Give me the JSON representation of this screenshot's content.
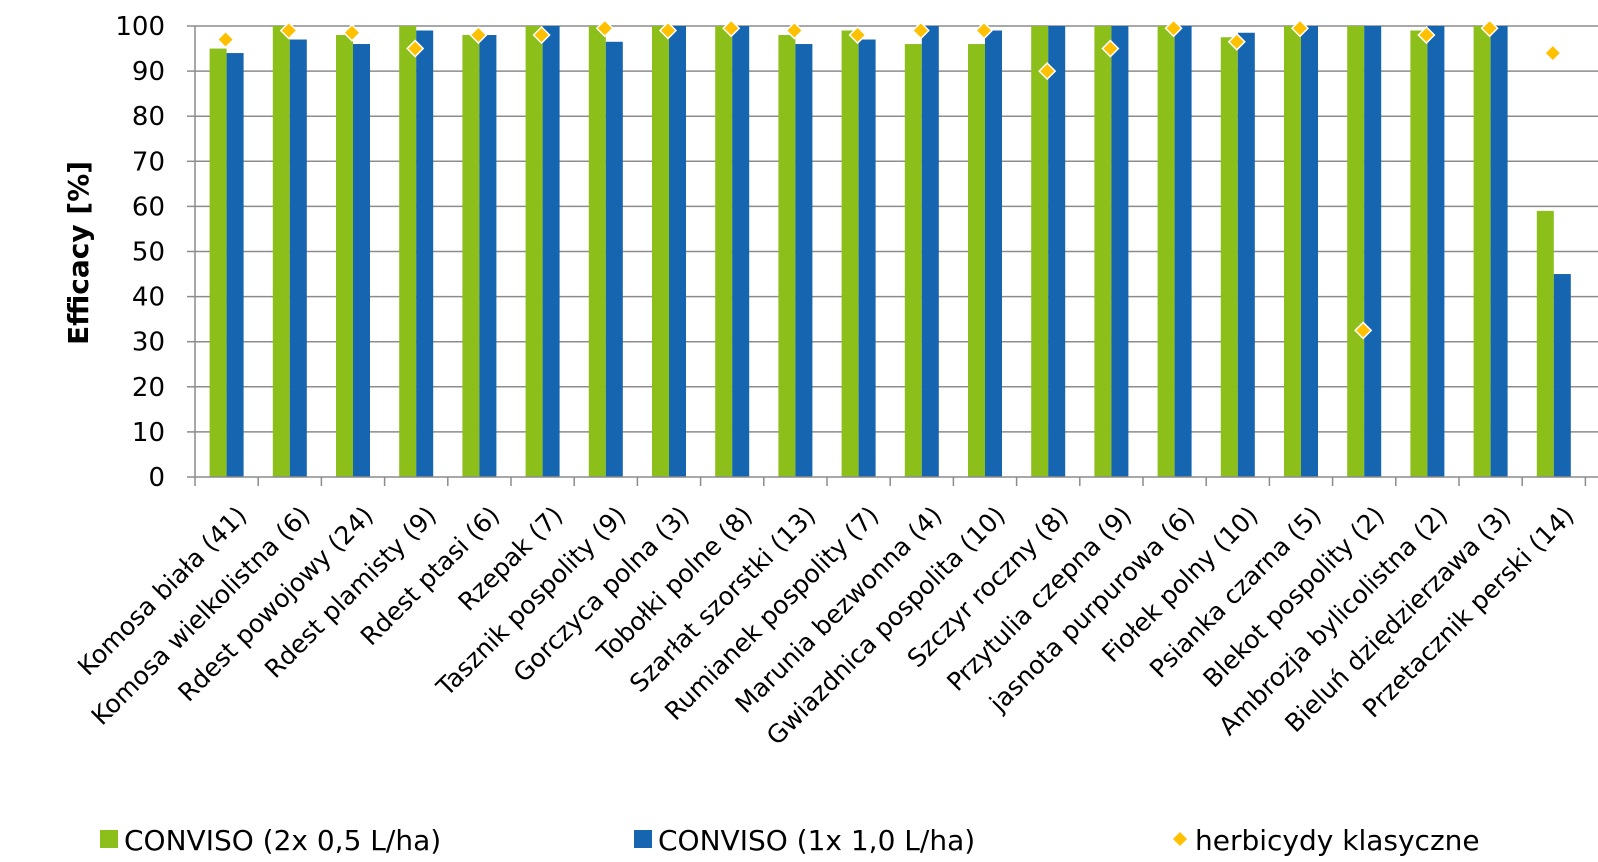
{
  "chart_data": {
    "type": "bar",
    "xlabel": "",
    "ylabel": "Efficacy [%]",
    "ylim": [
      0,
      100
    ],
    "yticks": [
      0,
      10,
      20,
      30,
      40,
      50,
      60,
      70,
      80,
      90,
      100
    ],
    "grid": true,
    "legend_position": "bottom",
    "categories": [
      "Komosa biała (41)",
      "Komosa wielkolistna (6)",
      "Rdest powojowy (24)",
      "Rdest plamisty (9)",
      "Rdest ptasi (6)",
      "Rzepak (7)",
      "Tasznik pospolity (9)",
      "Gorczyca polna (3)",
      "Tobołki polne (8)",
      "Szarłat szorstki (13)",
      "Rumianek pospolity (7)",
      "Marunia bezwonna (4)",
      "Gwiazdnica pospolita (10)",
      "Szczyr roczny (8)",
      "Przytulia czepna (9)",
      "jasnota purpurowa (6)",
      "Fiołek polny (10)",
      "Psianka czarna (5)",
      "Blekot pospolity (2)",
      "Ambrozja bylicolistna (2)",
      "Bieluń dziędzierzawa (3)",
      "Przetacznik perski (14)"
    ],
    "series": [
      {
        "name": "CONVISO (2x 0,5 L/ha)",
        "kind": "bar",
        "color": "#8cbf1a",
        "values": [
          95,
          100,
          98,
          100,
          98,
          100,
          100,
          100,
          100,
          98,
          99,
          96,
          96,
          100,
          100,
          100,
          97.5,
          100,
          100,
          99,
          100,
          59
        ]
      },
      {
        "name": "CONVISO (1x 1,0 L/ha)",
        "kind": "bar",
        "color": "#1565b0",
        "values": [
          94,
          97,
          96,
          99,
          98,
          100,
          96.5,
          100,
          100,
          96,
          97,
          100,
          99,
          100,
          100,
          100,
          98.5,
          100,
          100,
          100,
          100,
          45
        ]
      },
      {
        "name": "herbicydy klasyczne",
        "kind": "marker",
        "color": "#ffc000",
        "values": [
          97,
          99,
          98.5,
          95,
          98,
          98,
          99.5,
          99,
          99.5,
          99,
          98,
          99,
          99,
          90,
          95,
          99.5,
          96.5,
          99.5,
          32.5,
          98,
          99.5,
          94
        ]
      }
    ]
  }
}
